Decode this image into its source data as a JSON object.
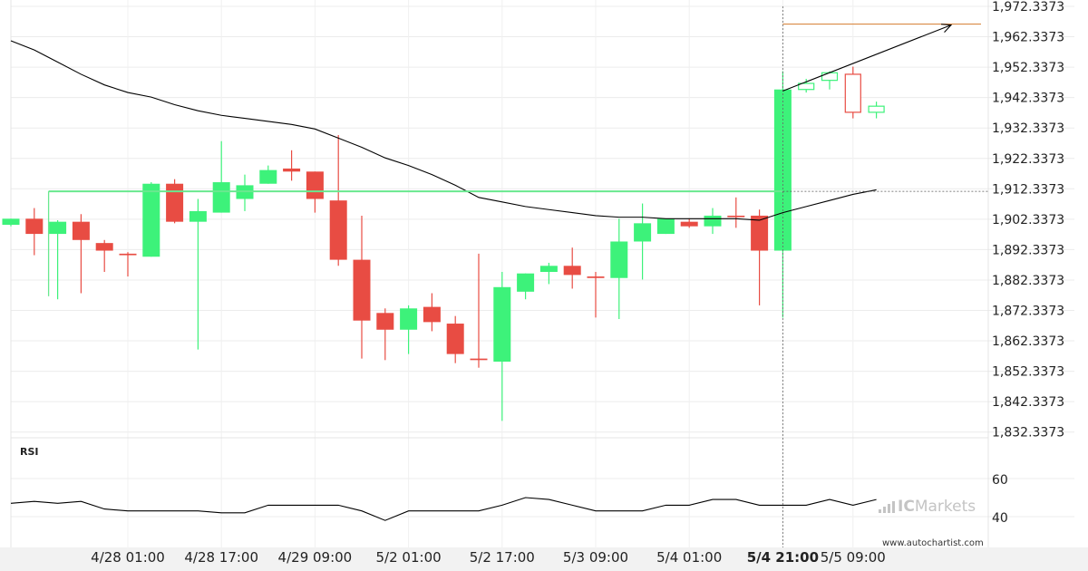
{
  "chart_data": {
    "type": "candlestick",
    "y_axis": {
      "ticks": [
        "1,972.3373",
        "1,962.3373",
        "1,952.3373",
        "1,942.3373",
        "1,932.3373",
        "1,922.3373",
        "1,912.3373",
        "1,902.3373",
        "1,892.3373",
        "1,882.3373",
        "1,872.3373",
        "1,862.3373",
        "1,852.3373",
        "1,842.3373",
        "1,832.3373"
      ],
      "range": [
        1827.3373,
        1975.3373
      ]
    },
    "x_axis": {
      "ticks": [
        {
          "label": "4/28 01:00",
          "index": 5
        },
        {
          "label": "4/28 17:00",
          "index": 9
        },
        {
          "label": "4/29 09:00",
          "index": 13
        },
        {
          "label": "5/2 01:00",
          "index": 17
        },
        {
          "label": "5/2 17:00",
          "index": 21
        },
        {
          "label": "5/3 09:00",
          "index": 25
        },
        {
          "label": "5/4 01:00",
          "index": 29
        },
        {
          "label": "5/4 21:00",
          "index": 33,
          "bold": true
        },
        {
          "label": "5/5 09:00",
          "index": 36
        }
      ]
    },
    "candles": [
      {
        "o": 1900.5,
        "h": 1902.5,
        "l": 1900.0,
        "c": 1902.5
      },
      {
        "o": 1902.5,
        "h": 1906.0,
        "l": 1890.5,
        "c": 1897.5
      },
      {
        "o": 1897.5,
        "h": 1902.0,
        "l": 1876.0,
        "c": 1901.5
      },
      {
        "o": 1901.5,
        "h": 1904.0,
        "l": 1878.0,
        "c": 1895.5
      },
      {
        "o": 1894.5,
        "h": 1895.5,
        "l": 1885.0,
        "c": 1892.0
      },
      {
        "o": 1891.0,
        "h": 1891.5,
        "l": 1883.5,
        "c": 1890.5
      },
      {
        "o": 1890.0,
        "h": 1914.5,
        "l": 1890.0,
        "c": 1914.0
      },
      {
        "o": 1914.0,
        "h": 1915.5,
        "l": 1901.0,
        "c": 1901.5
      },
      {
        "o": 1901.5,
        "h": 1909.0,
        "l": 1859.5,
        "c": 1905.0
      },
      {
        "o": 1904.5,
        "h": 1928.0,
        "l": 1904.5,
        "c": 1914.5
      },
      {
        "o": 1909.0,
        "h": 1917.0,
        "l": 1905.0,
        "c": 1913.5
      },
      {
        "o": 1914.0,
        "h": 1920.0,
        "l": 1914.0,
        "c": 1918.5
      },
      {
        "o": 1919.0,
        "h": 1925.0,
        "l": 1915.0,
        "c": 1918.0
      },
      {
        "o": 1918.0,
        "h": 1918.0,
        "l": 1904.5,
        "c": 1909.0
      },
      {
        "o": 1908.5,
        "h": 1930.0,
        "l": 1887.0,
        "c": 1889.0
      },
      {
        "o": 1889.0,
        "h": 1903.5,
        "l": 1856.5,
        "c": 1869.0
      },
      {
        "o": 1871.5,
        "h": 1873.0,
        "l": 1856.0,
        "c": 1866.0
      },
      {
        "o": 1866.0,
        "h": 1874.0,
        "l": 1858.0,
        "c": 1873.0
      },
      {
        "o": 1873.5,
        "h": 1878.0,
        "l": 1865.5,
        "c": 1868.5
      },
      {
        "o": 1868.0,
        "h": 1870.5,
        "l": 1855.0,
        "c": 1858.0
      },
      {
        "o": 1856.5,
        "h": 1891.0,
        "l": 1853.5,
        "c": 1856.0
      },
      {
        "o": 1855.5,
        "h": 1885.0,
        "l": 1836.0,
        "c": 1880.0
      },
      {
        "o": 1878.5,
        "h": 1884.5,
        "l": 1876.0,
        "c": 1884.5
      },
      {
        "o": 1885.0,
        "h": 1888.0,
        "l": 1881.0,
        "c": 1887.0
      },
      {
        "o": 1887.0,
        "h": 1893.0,
        "l": 1879.5,
        "c": 1884.0
      },
      {
        "o": 1883.5,
        "h": 1885.0,
        "l": 1870.0,
        "c": 1883.0
      },
      {
        "o": 1883.0,
        "h": 1902.5,
        "l": 1869.5,
        "c": 1895.0
      },
      {
        "o": 1895.0,
        "h": 1907.5,
        "l": 1882.5,
        "c": 1901.0
      },
      {
        "o": 1897.5,
        "h": 1902.5,
        "l": 1897.5,
        "c": 1902.5
      },
      {
        "o": 1901.5,
        "h": 1902.5,
        "l": 1899.5,
        "c": 1900.0
      },
      {
        "o": 1900.0,
        "h": 1906.0,
        "l": 1897.5,
        "c": 1903.5
      },
      {
        "o": 1903.5,
        "h": 1909.5,
        "l": 1899.5,
        "c": 1903.0
      },
      {
        "o": 1903.5,
        "h": 1905.5,
        "l": 1874.0,
        "c": 1892.0
      },
      {
        "o": 1892.0,
        "h": 1951.0,
        "l": 1870.0,
        "c": 1945.0
      },
      {
        "o": 1945.0,
        "h": 1948.5,
        "l": 1944.0,
        "c": 1947.0
      },
      {
        "o": 1948.0,
        "h": 1951.0,
        "l": 1945.0,
        "c": 1950.5
      },
      {
        "o": 1950.0,
        "h": 1952.5,
        "l": 1935.5,
        "c": 1937.5
      },
      {
        "o": 1937.5,
        "h": 1941.0,
        "l": 1935.5,
        "c": 1939.5
      }
    ],
    "moving_average": [
      [
        0,
        1961.0
      ],
      [
        1,
        1958.0
      ],
      [
        2,
        1954.0
      ],
      [
        3,
        1950.0
      ],
      [
        4,
        1946.5
      ],
      [
        5,
        1944.0
      ],
      [
        6,
        1942.5
      ],
      [
        7,
        1940.0
      ],
      [
        8,
        1938.0
      ],
      [
        9,
        1936.5
      ],
      [
        10,
        1935.5
      ],
      [
        11,
        1934.5
      ],
      [
        12,
        1933.5
      ],
      [
        13,
        1932.0
      ],
      [
        14,
        1929.0
      ],
      [
        15,
        1926.0
      ],
      [
        16,
        1922.5
      ],
      [
        17,
        1920.0
      ],
      [
        18,
        1917.0
      ],
      [
        19,
        1913.5
      ],
      [
        20,
        1909.5
      ],
      [
        21,
        1908.0
      ],
      [
        22,
        1906.5
      ],
      [
        23,
        1905.5
      ],
      [
        24,
        1904.5
      ],
      [
        25,
        1903.5
      ],
      [
        26,
        1903.0
      ],
      [
        27,
        1903.0
      ],
      [
        28,
        1902.5
      ],
      [
        29,
        1902.5
      ],
      [
        30,
        1902.5
      ],
      [
        31,
        1902.5
      ],
      [
        32,
        1902.0
      ],
      [
        33,
        1904.5
      ],
      [
        34,
        1906.5
      ],
      [
        35,
        1908.5
      ],
      [
        36,
        1910.5
      ],
      [
        37,
        1912.0
      ]
    ],
    "resistance_level": {
      "value": 1911.5,
      "start_index": 2
    },
    "breakout_marker_index": 33,
    "projection": {
      "from": [
        33,
        1944.5
      ],
      "to": [
        40,
        1966.5
      ]
    },
    "target_level": {
      "value": 1966.5
    },
    "rsi": {
      "label": "RSI",
      "ticks": [
        "60",
        "40"
      ],
      "values": [
        47,
        48,
        47,
        48,
        44,
        43,
        43,
        43,
        43,
        42,
        42,
        46,
        46,
        46,
        46,
        43,
        38,
        43,
        43,
        43,
        43,
        46,
        50,
        49,
        46,
        43,
        43,
        43,
        46,
        46,
        49,
        49,
        46,
        46,
        46,
        49,
        46,
        49
      ]
    }
  },
  "branding": {
    "logo_ic": "IC",
    "logo_markets": "Markets",
    "source_url": "www.autochartist.com"
  },
  "colors": {
    "bull": "#3df27a",
    "bear": "#e84c43",
    "resistance": "#69e88f",
    "target": "#d98a45",
    "line": "#000000"
  }
}
